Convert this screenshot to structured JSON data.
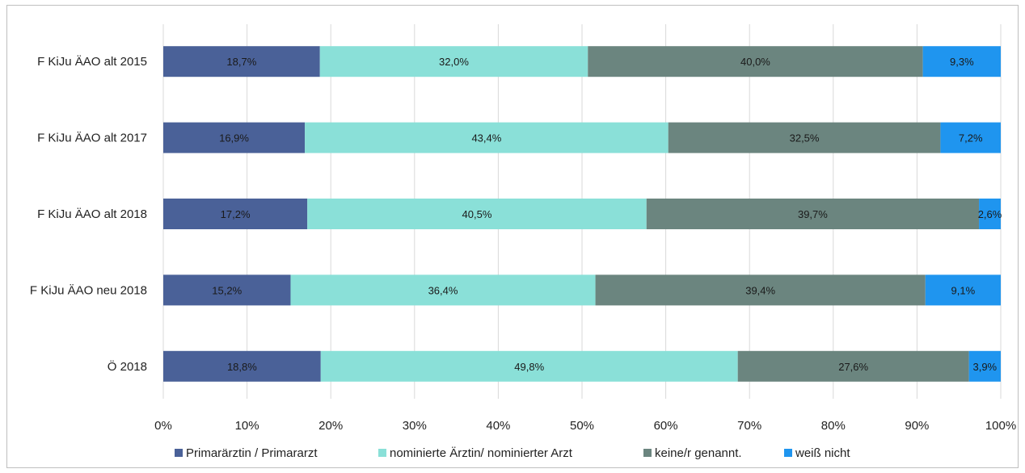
{
  "chart_data": {
    "type": "bar",
    "orientation": "horizontal",
    "stacked": "percent",
    "categories": [
      "F KiJu ÄAO alt 2015",
      "F KiJu ÄAO alt 2017",
      "F KiJu ÄAO alt 2018",
      "F KiJu ÄAO neu 2018",
      "Ö 2018"
    ],
    "series": [
      {
        "name": "Primarärztin / Primararzt",
        "color": "#4a6198",
        "values": [
          18.7,
          16.9,
          17.2,
          15.2,
          18.8
        ],
        "labels": [
          "18,7%",
          "16,9%",
          "17,2%",
          "15,2%",
          "18,8%"
        ]
      },
      {
        "name": "nominierte Ärztin/ nominierter Arzt",
        "color": "#8ae0d8",
        "values": [
          32.0,
          43.4,
          40.5,
          36.4,
          49.8
        ],
        "labels": [
          "32,0%",
          "43,4%",
          "40,5%",
          "36,4%",
          "49,8%"
        ]
      },
      {
        "name": "keine/r genannt.",
        "color": "#6b857f",
        "values": [
          40.0,
          32.5,
          39.7,
          39.4,
          27.6
        ],
        "labels": [
          "40,0%",
          "32,5%",
          "39,7%",
          "39,4%",
          "27,6%"
        ]
      },
      {
        "name": "weiß nicht",
        "color": "#1f95ef",
        "values": [
          9.3,
          7.2,
          2.6,
          9.1,
          3.9
        ],
        "labels": [
          "9,3%",
          "7,2%",
          "2,6%",
          "9,1%",
          "3,9%"
        ]
      }
    ],
    "xlim": [
      0,
      100
    ],
    "x_ticks": [
      "0%",
      "10%",
      "20%",
      "30%",
      "40%",
      "50%",
      "60%",
      "70%",
      "80%",
      "90%",
      "100%"
    ],
    "grid": "vertical",
    "legend": "bottom"
  }
}
